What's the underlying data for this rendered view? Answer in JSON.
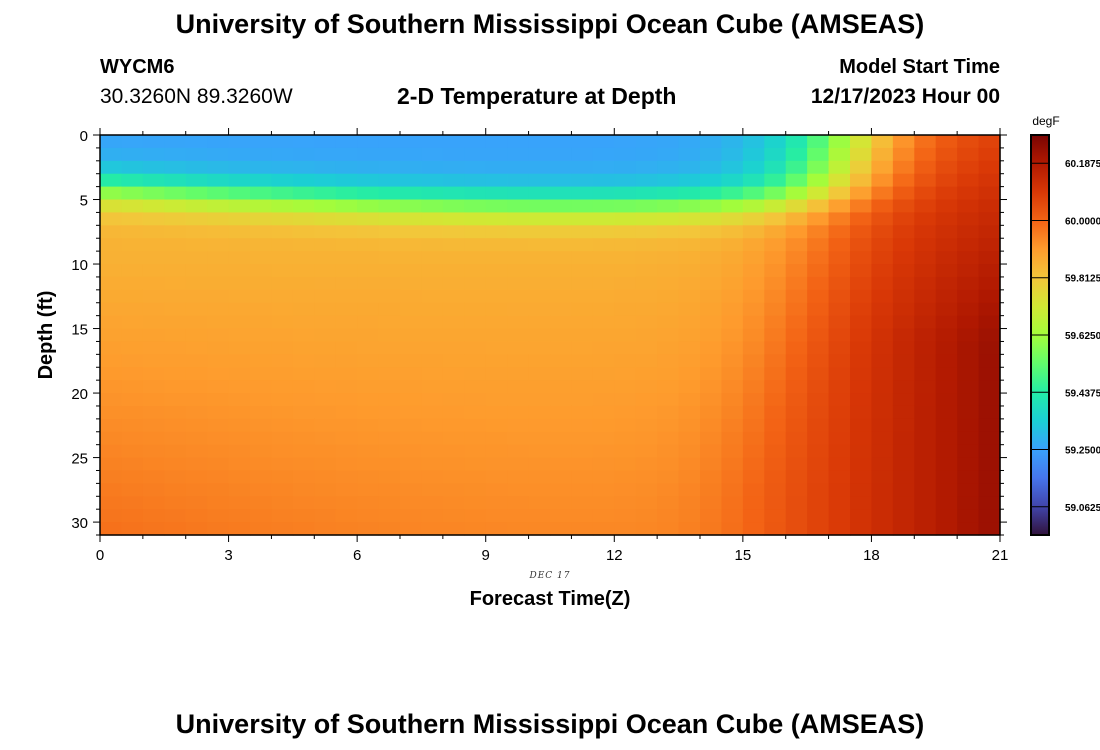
{
  "header": {
    "title": "University of Southern Mississippi Ocean Cube (AMSEAS)",
    "station_id": "WYCM6",
    "coordinates": "30.3260N  89.3260W",
    "plot_title": "2-D Temperature at Depth",
    "start_label": "Model Start Time",
    "start_value": "12/17/2023 Hour 00"
  },
  "footer": {
    "title": "University of Southern Mississippi Ocean Cube (AMSEAS)"
  },
  "colors": {
    "colormap": [
      "#30123b",
      "#4145ab",
      "#4675ed",
      "#39a2fc",
      "#1bcfd4",
      "#24eca6",
      "#61fc6c",
      "#a4fc3b",
      "#d1e834",
      "#f3c63a",
      "#fe9b2d",
      "#f36315",
      "#d93806",
      "#b11901",
      "#7a0403"
    ]
  },
  "chart_data": {
    "type": "heatmap",
    "xlabel": "Forecast Time(Z)",
    "ylabel": "Depth (ft)",
    "x_date_label": "DEC 17",
    "xlim": [
      0,
      21
    ],
    "ylim": [
      31,
      0
    ],
    "x_ticks": [
      0,
      3,
      6,
      9,
      12,
      15,
      18,
      21
    ],
    "y_ticks": [
      0,
      5,
      10,
      15,
      20,
      25,
      30
    ],
    "x_cells": 42,
    "y_cells": 31,
    "colorbar": {
      "unit": "degF",
      "min": 58.97,
      "max": 60.28,
      "tick_values": [
        60.1875,
        60.0,
        59.8125,
        59.625,
        59.4375,
        59.25,
        59.0625
      ],
      "tick_labels": [
        "60.1875",
        "60.0000",
        "59.8125",
        "59.6250",
        "59.4375",
        "59.2500",
        "59.0625"
      ]
    },
    "value_model": "Temperature field estimated from the image: cold surface layer (~59.1-59.4 degF) in the top ~5 ft for hours 0-16, a thermocline transitioning near 5-10 ft, a near-isothermal mid layer (~59.85-59.95 degF), and warm water (~60.0-60.25 degF) developing after hour ~16, strongest toward hour 21 and deeper levels."
  }
}
